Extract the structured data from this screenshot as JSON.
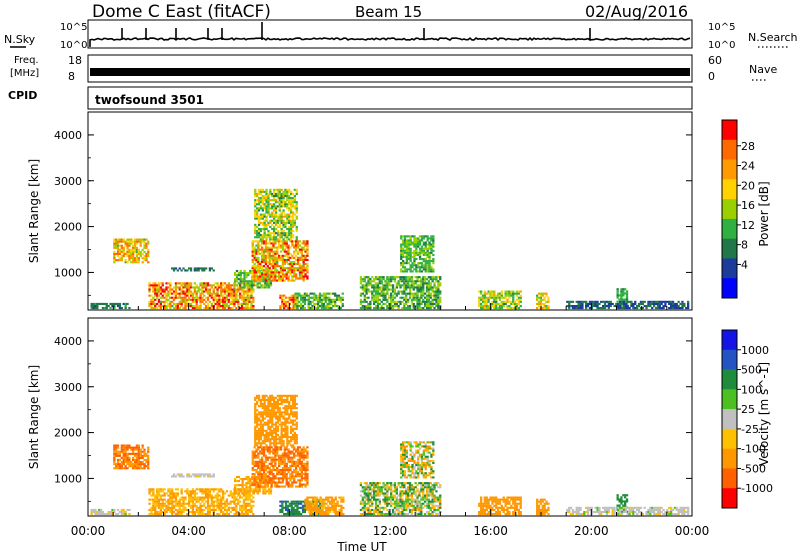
{
  "header": {
    "station": "Dome C East (fitACF)",
    "beam": "Beam 15",
    "date": "02/Aug/2016"
  },
  "strip_labels": {
    "nsky": "N.Sky",
    "nsky_ticks": [
      "10^5",
      "10^0"
    ],
    "nsearch": "N.Search",
    "nsearch_ticks": [
      "10^5",
      "10^0"
    ],
    "freq_line1": "Freq.",
    "freq_line2": "[MHz]",
    "freq_ticks": [
      "18",
      "8"
    ],
    "nave": "Nave",
    "nave_ticks": [
      "60",
      "0"
    ],
    "cpid": "CPID",
    "cpid_value": "twofsound 3501"
  },
  "colorbars": {
    "power": {
      "label": "Power [dB]",
      "ticks": [
        "28",
        "24",
        "20",
        "16",
        "12",
        "8",
        "4"
      ],
      "colors": [
        "#ff0000",
        "#ff6a00",
        "#ff9a00",
        "#ffd200",
        "#9ad000",
        "#30b040",
        "#207848",
        "#1c3c9c",
        "#0000ff"
      ]
    },
    "velocity": {
      "label": "Velocity [m s^-1]",
      "ticks": [
        "1000",
        "500",
        "100",
        "25",
        "-25",
        "-100",
        "-500",
        "-1000"
      ],
      "colors": [
        "#1414e6",
        "#2454c4",
        "#1e8c3a",
        "#4cc020",
        "#c0c0c0",
        "#ffc000",
        "#ff9800",
        "#ff6000",
        "#ff0000"
      ]
    }
  },
  "chart_data": [
    {
      "type": "heatmap",
      "panel": "power",
      "title": "Dome C East (fitACF)",
      "ylabel": "Slant Range [km]",
      "yticks": [
        "4000",
        "3000",
        "2000",
        "1000"
      ],
      "ylim": [
        180,
        4500
      ],
      "xlim": [
        0,
        24
      ],
      "zlabel": "Power [dB]",
      "zlim": [
        0,
        32
      ],
      "regions": [
        {
          "t": [
            0.1,
            1.6
          ],
          "r": [
            200,
            320
          ],
          "v": [
            6,
            12
          ]
        },
        {
          "t": [
            1.0,
            2.4
          ],
          "r": [
            1200,
            1700
          ],
          "v": [
            14,
            28
          ]
        },
        {
          "t": [
            2.4,
            6.6
          ],
          "r": [
            200,
            750
          ],
          "v": [
            14,
            32
          ]
        },
        {
          "t": [
            3.3,
            5.0
          ],
          "r": [
            1020,
            1100
          ],
          "v": [
            6,
            10
          ]
        },
        {
          "t": [
            5.8,
            7.3
          ],
          "r": [
            650,
            1050
          ],
          "v": [
            10,
            18
          ]
        },
        {
          "t": [
            6.5,
            8.7
          ],
          "r": [
            800,
            1700
          ],
          "v": [
            14,
            32
          ]
        },
        {
          "t": [
            6.6,
            8.3
          ],
          "r": [
            1700,
            2800
          ],
          "v": [
            10,
            22
          ]
        },
        {
          "t": [
            7.6,
            8.3
          ],
          "r": [
            200,
            500
          ],
          "v": [
            18,
            32
          ]
        },
        {
          "t": [
            8.2,
            10.1
          ],
          "r": [
            200,
            550
          ],
          "v": [
            8,
            18
          ]
        },
        {
          "t": [
            10.8,
            14.0
          ],
          "r": [
            200,
            900
          ],
          "v": [
            8,
            18
          ]
        },
        {
          "t": [
            12.4,
            13.7
          ],
          "r": [
            1000,
            1800
          ],
          "v": [
            10,
            16
          ]
        },
        {
          "t": [
            15.5,
            17.2
          ],
          "r": [
            200,
            600
          ],
          "v": [
            10,
            22
          ]
        },
        {
          "t": [
            17.8,
            18.3
          ],
          "r": [
            200,
            550
          ],
          "v": [
            14,
            24
          ]
        },
        {
          "t": [
            21.0,
            21.4
          ],
          "r": [
            250,
            650
          ],
          "v": [
            10,
            14
          ]
        },
        {
          "t": [
            19.0,
            23.8
          ],
          "r": [
            200,
            350
          ],
          "v": [
            4,
            10
          ]
        }
      ]
    },
    {
      "type": "heatmap",
      "panel": "velocity",
      "ylabel": "Slant Range [km]",
      "yticks": [
        "4000",
        "3000",
        "2000",
        "1000"
      ],
      "ylim": [
        180,
        4500
      ],
      "xlabel": "Time UT",
      "xticks": [
        "00:00",
        "04:00",
        "08:00",
        "12:00",
        "16:00",
        "20:00",
        "00:00"
      ],
      "xlim": [
        0,
        24
      ],
      "zlabel": "Velocity [m s^-1]",
      "zlim": [
        -1000,
        1000
      ],
      "regions": [
        {
          "t": [
            0.1,
            1.6
          ],
          "r": [
            200,
            320
          ],
          "v": [
            -50,
            30
          ]
        },
        {
          "t": [
            1.0,
            2.4
          ],
          "r": [
            1200,
            1700
          ],
          "v": [
            -700,
            -300
          ]
        },
        {
          "t": [
            2.4,
            6.6
          ],
          "r": [
            200,
            750
          ],
          "v": [
            -150,
            -50
          ]
        },
        {
          "t": [
            3.3,
            5.0
          ],
          "r": [
            1020,
            1100
          ],
          "v": [
            -30,
            20
          ]
        },
        {
          "t": [
            5.8,
            7.3
          ],
          "r": [
            650,
            1050
          ],
          "v": [
            -200,
            -50
          ]
        },
        {
          "t": [
            6.5,
            8.7
          ],
          "r": [
            800,
            1700
          ],
          "v": [
            -800,
            -200
          ]
        },
        {
          "t": [
            6.6,
            8.3
          ],
          "r": [
            1700,
            2800
          ],
          "v": [
            -300,
            -100
          ]
        },
        {
          "t": [
            7.6,
            9.2
          ],
          "r": [
            200,
            500
          ],
          "v": [
            150,
            600
          ]
        },
        {
          "t": [
            8.6,
            10.1
          ],
          "r": [
            200,
            600
          ],
          "v": [
            -200,
            -80
          ]
        },
        {
          "t": [
            10.8,
            14.0
          ],
          "r": [
            200,
            900
          ],
          "v": [
            -150,
            200
          ]
        },
        {
          "t": [
            12.4,
            13.7
          ],
          "r": [
            1000,
            1800
          ],
          "v": [
            -200,
            150
          ]
        },
        {
          "t": [
            15.5,
            17.2
          ],
          "r": [
            200,
            600
          ],
          "v": [
            -400,
            -100
          ]
        },
        {
          "t": [
            17.8,
            18.3
          ],
          "r": [
            200,
            550
          ],
          "v": [
            -300,
            -100
          ]
        },
        {
          "t": [
            21.0,
            21.4
          ],
          "r": [
            250,
            650
          ],
          "v": [
            150,
            400
          ]
        },
        {
          "t": [
            19.0,
            23.8
          ],
          "r": [
            200,
            350
          ],
          "v": [
            -30,
            30
          ]
        }
      ]
    }
  ]
}
